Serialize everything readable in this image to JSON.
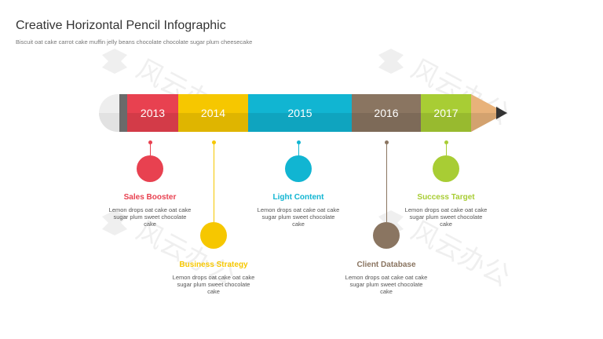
{
  "header": {
    "title": "Creative Horizontal Pencil Infographic",
    "subtitle": "Biscuit oat cake carrot cake muffin jelly beans chocolate chocolate sugar plum cheesecake"
  },
  "watermark": {
    "text": "风云办公",
    "icon": "watermark-logo-icon"
  },
  "pencil": {
    "eraser_color": "#eeeeee",
    "ferrule_color": "#6a6a6a",
    "wood_color": "#e8b27a",
    "lead_color": "#333333",
    "segments": [
      {
        "year": "2013",
        "color": "#e84150"
      },
      {
        "year": "2014",
        "color": "#f6c700"
      },
      {
        "year": "2015",
        "color": "#11b5d2"
      },
      {
        "year": "2016",
        "color": "#8a7561"
      },
      {
        "year": "2017",
        "color": "#a8cd34"
      }
    ]
  },
  "milestones": [
    {
      "title": "Sales Booster",
      "text": "Lemon drops oat cake oat cake sugar plum sweet chocolate cake",
      "color": "#e84150",
      "position": "upper"
    },
    {
      "title": "Business Strategy",
      "text": "Lemon drops oat cake oat cake sugar plum sweet chocolate cake",
      "color": "#f6c700",
      "position": "lower"
    },
    {
      "title": "Light Content",
      "text": "Lemon drops oat cake oat cake sugar plum sweet chocolate cake",
      "color": "#11b5d2",
      "position": "upper"
    },
    {
      "title": "Client Database",
      "text": "Lemon drops oat cake oat cake sugar plum sweet chocolate cake",
      "color": "#8a7561",
      "position": "lower"
    },
    {
      "title": "Success Target",
      "text": "Lemon drops oat cake oat cake sugar plum sweet chocolate cake",
      "color": "#a8cd34",
      "position": "upper"
    }
  ]
}
